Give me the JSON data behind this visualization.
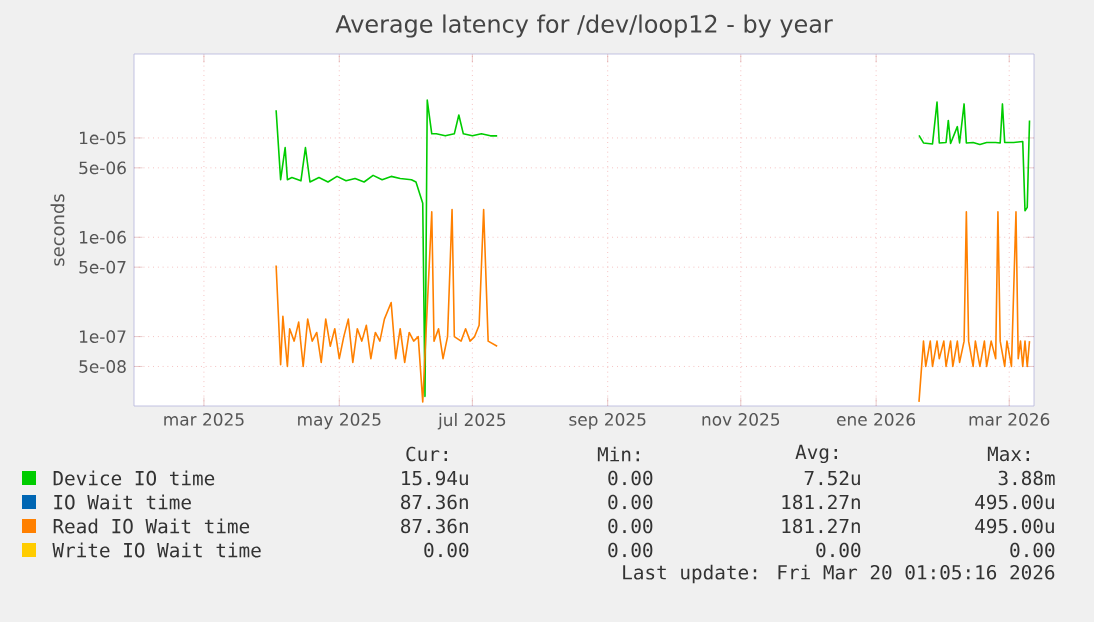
{
  "chart_data": {
    "type": "line",
    "title": "Average latency for /dev/loop12 - by year",
    "ylabel": "seconds",
    "log": "y",
    "grid": true,
    "legend": "bottom",
    "xlim": [
      "2025-02-14",
      "2026-03-20"
    ],
    "xticks": [
      {
        "value": "2025-03-17",
        "label": "mar 2025"
      },
      {
        "value": "2025-05-16",
        "label": "may 2025"
      },
      {
        "value": "2025-07-14",
        "label": "jul 2025"
      },
      {
        "value": "2025-09-12",
        "label": "sep 2025"
      },
      {
        "value": "2025-11-10",
        "label": "nov 2025"
      },
      {
        "value": "2026-01-09",
        "label": "ene 2026"
      },
      {
        "value": "2026-03-09",
        "label": "mar 2026"
      }
    ],
    "ylim": [
      2e-08,
      7e-05
    ],
    "yticks": [
      {
        "value": 5e-08,
        "label": "5e-08"
      },
      {
        "value": 1e-07,
        "label": "1e-07"
      },
      {
        "value": 5e-07,
        "label": "5e-07"
      },
      {
        "value": 1e-06,
        "label": "1e-06"
      },
      {
        "value": 5e-06,
        "label": "5e-06"
      },
      {
        "value": 1e-05,
        "label": "1e-05"
      }
    ],
    "series": [
      {
        "name": "Device IO time",
        "color": "#00cc00",
        "x": [
          "2025-04-18",
          "2025-04-20",
          "2025-04-22",
          "2025-04-23",
          "2025-04-25",
          "2025-04-29",
          "2025-05-01",
          "2025-05-03",
          "2025-05-07",
          "2025-05-11",
          "2025-05-15",
          "2025-05-19",
          "2025-05-23",
          "2025-05-27",
          "2025-05-31",
          "2025-06-04",
          "2025-06-08",
          "2025-06-12",
          "2025-06-17",
          "2025-06-19",
          "2025-06-22",
          "2025-06-23",
          "2025-06-24",
          "2025-06-26",
          "2025-06-28",
          "2025-07-02",
          "2025-07-06",
          "2025-07-08",
          "2025-07-10",
          "2025-07-14",
          "2025-07-18",
          "2025-07-22",
          "2025-07-25",
          "2025-10-01",
          "2026-01-28",
          "2026-01-30",
          "2026-02-03",
          "2026-02-05",
          "2026-02-06",
          "2026-02-09",
          "2026-02-10",
          "2026-02-11",
          "2026-02-14",
          "2026-02-15",
          "2026-02-17",
          "2026-02-18",
          "2026-02-21",
          "2026-02-24",
          "2026-02-27",
          "2026-03-03",
          "2026-03-05",
          "2026-03-06",
          "2026-03-07",
          "2026-03-11",
          "2026-03-15",
          "2026-03-16",
          "2026-03-17",
          "2026-03-18"
        ],
        "values": [
          1.9e-05,
          3.8e-06,
          8e-06,
          3.8e-06,
          4e-06,
          3.7e-06,
          8e-06,
          3.6e-06,
          4e-06,
          3.6e-06,
          4.1e-06,
          3.7e-06,
          3.9e-06,
          3.6e-06,
          4.2e-06,
          3.8e-06,
          4.1e-06,
          3.9e-06,
          3.8e-06,
          3.6e-06,
          2.2e-06,
          2.5e-08,
          2.4e-05,
          1.1e-05,
          1.1e-05,
          1.05e-05,
          1.1e-05,
          1.7e-05,
          1.1e-05,
          1.05e-05,
          1.1e-05,
          1.05e-05,
          1.05e-05,
          null,
          1.06e-05,
          8.9e-06,
          8.7e-06,
          2.3e-05,
          8.9e-06,
          9e-06,
          1.5e-05,
          8.8e-06,
          1.3e-05,
          8.9e-06,
          2.2e-05,
          8.9e-06,
          9e-06,
          8.6e-06,
          9e-06,
          9e-06,
          8.9e-06,
          2.2e-05,
          9e-06,
          9e-06,
          9.2e-06,
          1.85e-06,
          2e-06,
          1.5e-05
        ]
      },
      {
        "name": "IO Wait time",
        "color": "#0066b3"
      },
      {
        "name": "Read IO Wait time",
        "color": "#ff8000",
        "x": [
          "2025-04-18",
          "2025-04-20",
          "2025-04-21",
          "2025-04-23",
          "2025-04-24",
          "2025-04-26",
          "2025-04-28",
          "2025-04-30",
          "2025-05-02",
          "2025-05-04",
          "2025-05-06",
          "2025-05-08",
          "2025-05-10",
          "2025-05-12",
          "2025-05-14",
          "2025-05-16",
          "2025-05-18",
          "2025-05-20",
          "2025-05-22",
          "2025-05-24",
          "2025-05-26",
          "2025-05-28",
          "2025-05-30",
          "2025-06-01",
          "2025-06-03",
          "2025-06-05",
          "2025-06-08",
          "2025-06-10",
          "2025-06-12",
          "2025-06-14",
          "2025-06-16",
          "2025-06-18",
          "2025-06-20",
          "2025-06-22",
          "2025-06-26",
          "2025-06-27",
          "2025-06-29",
          "2025-07-01",
          "2025-07-03",
          "2025-07-05",
          "2025-07-06",
          "2025-07-09",
          "2025-07-11",
          "2025-07-13",
          "2025-07-15",
          "2025-07-17",
          "2025-07-19",
          "2025-07-21",
          "2025-07-25",
          "2025-10-01",
          "2026-01-28",
          "2026-01-30",
          "2026-01-31",
          "2026-02-02",
          "2026-02-03",
          "2026-02-05",
          "2026-02-06",
          "2026-02-08",
          "2026-02-09",
          "2026-02-11",
          "2026-02-12",
          "2026-02-14",
          "2026-02-15",
          "2026-02-17",
          "2026-02-18",
          "2026-02-19",
          "2026-02-21",
          "2026-02-22",
          "2026-02-24",
          "2026-02-26",
          "2026-02-27",
          "2026-03-01",
          "2026-03-03",
          "2026-03-04",
          "2026-03-05",
          "2026-03-07",
          "2026-03-08",
          "2026-03-10",
          "2026-03-12",
          "2026-03-13",
          "2026-03-14",
          "2026-03-15",
          "2026-03-16",
          "2026-03-17",
          "2026-03-18"
        ],
        "values": [
          5.2e-07,
          5.2e-08,
          1.6e-07,
          5e-08,
          1.2e-07,
          9e-08,
          1.4e-07,
          5e-08,
          1.5e-07,
          9e-08,
          1.1e-07,
          5.5e-08,
          1.5e-07,
          8e-08,
          1.2e-07,
          6e-08,
          1e-07,
          1.5e-07,
          5.5e-08,
          1.2e-07,
          9e-08,
          1.3e-07,
          6e-08,
          1.1e-07,
          9e-08,
          1.5e-07,
          2.2e-07,
          6e-08,
          1.2e-07,
          5.5e-08,
          1.1e-07,
          9e-08,
          1e-07,
          2.2e-08,
          1.8e-06,
          9e-08,
          1.2e-07,
          6e-08,
          1e-07,
          1.9e-06,
          1e-07,
          9e-08,
          1.2e-07,
          9e-08,
          1e-07,
          1.3e-07,
          1.9e-06,
          9e-08,
          8e-08,
          null,
          2.2e-08,
          9e-08,
          5e-08,
          9e-08,
          5e-08,
          9e-08,
          6e-08,
          9e-08,
          5e-08,
          9e-08,
          5e-08,
          9e-08,
          5.5e-08,
          9e-08,
          1.8e-06,
          9e-08,
          5e-08,
          9e-08,
          5e-08,
          9e-08,
          5e-08,
          9e-08,
          6e-08,
          1.8e-06,
          9e-08,
          5e-08,
          9e-08,
          5e-08,
          1.8e-06,
          6e-08,
          9e-08,
          5e-08,
          9e-08,
          5e-08,
          9e-08
        ]
      },
      {
        "name": "Write IO Wait time",
        "color": "#ffcc00"
      }
    ],
    "annotations": [
      "Cur:",
      "Min:",
      "Avg:",
      "Max:",
      "15.94u",
      "0.00",
      "7.52u",
      "3.88m",
      "87.36n",
      "0.00",
      "181.27n",
      "495.00u",
      "87.36n",
      "0.00",
      "181.27n",
      "495.00u",
      "0.00",
      "0.00",
      "0.00",
      "0.00",
      "Last update: Fri Mar 20 01:05:16 2026"
    ]
  }
}
